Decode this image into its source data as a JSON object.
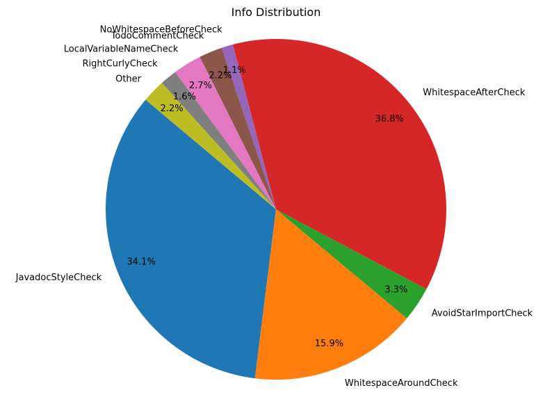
{
  "chart_data": {
    "type": "pie",
    "title": "Info Distribution",
    "start_angle_deg": 140,
    "direction": "counterclockwise",
    "slices": [
      {
        "label": "JavadocStyleCheck",
        "value": 34.1,
        "pct_label": "34.1%",
        "color": "#1f77b4"
      },
      {
        "label": "WhitespaceAroundCheck",
        "value": 15.9,
        "pct_label": "15.9%",
        "color": "#ff7f0e"
      },
      {
        "label": "AvoidStarImportCheck",
        "value": 3.3,
        "pct_label": "3.3%",
        "color": "#2ca02c"
      },
      {
        "label": "WhitespaceAfterCheck",
        "value": 36.8,
        "pct_label": "36.8%",
        "color": "#d62728"
      },
      {
        "label": "NoWhitespaceBeforeCheck",
        "value": 1.1,
        "pct_label": "1.1%",
        "color": "#9467bd"
      },
      {
        "label": "TodoCommentCheck",
        "value": 2.2,
        "pct_label": "2.2%",
        "color": "#8c564b"
      },
      {
        "label": "LocalVariableNameCheck",
        "value": 2.7,
        "pct_label": "2.7%",
        "color": "#e377c2"
      },
      {
        "label": "RightCurlyCheck",
        "value": 1.6,
        "pct_label": "1.6%",
        "color": "#7f7f7f"
      },
      {
        "label": "Other",
        "value": 2.2,
        "pct_label": "2.2%",
        "color": "#bcbd22"
      }
    ]
  }
}
